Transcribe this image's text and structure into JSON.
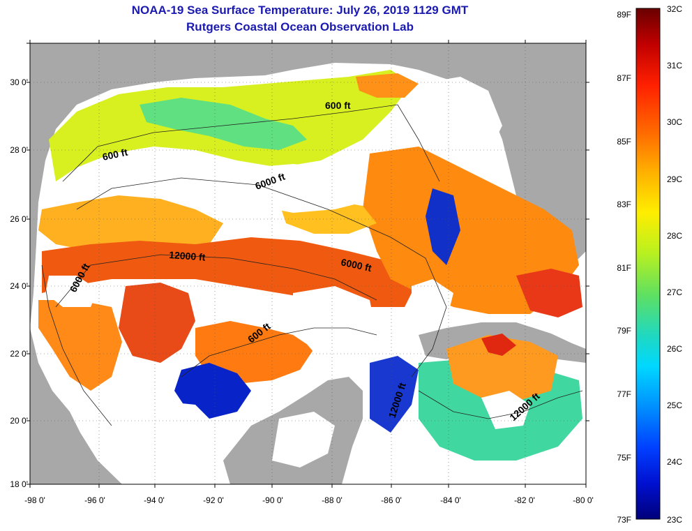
{
  "header": {
    "title": "NOAA-19 Sea Surface Temperature:  July 26, 2019 1129 GMT",
    "subtitle": "Rutgers Coastal Ocean Observation Lab"
  },
  "axes": {
    "lat_labels": [
      "30 0'",
      "28 0'",
      "26 0'",
      "24 0'",
      "22 0'",
      "20 0'",
      "18 0'"
    ],
    "lon_labels": [
      "-98 0'",
      "-96 0'",
      "-94 0'",
      "-92 0'",
      "-90 0'",
      "-88 0'",
      "-86 0'",
      "-84 0'",
      "-82 0'",
      "-80 0'"
    ]
  },
  "contours": {
    "labels": [
      "600 ft",
      "600 ft",
      "6000 ft",
      "12000 ft",
      "6000 ft",
      "6000 ft",
      "600 ft",
      "12000 ft",
      "12000 ft"
    ]
  },
  "colorbar": {
    "fahrenheit_labels": [
      "89F",
      "87F",
      "85F",
      "83F",
      "81F",
      "79F",
      "77F",
      "75F",
      "73F"
    ],
    "celsius_labels": [
      "32C",
      "31C",
      "30C",
      "29C",
      "28C",
      "27C",
      "26C",
      "25C",
      "24C",
      "23C"
    ],
    "colors": [
      "#7a0000",
      "#c40000",
      "#ff2a00",
      "#ff7a00",
      "#ffb000",
      "#ffe600",
      "#c8f000",
      "#70e040",
      "#30d8a0",
      "#00e0ff",
      "#00a8ff",
      "#0060ff",
      "#0010e0",
      "#000080"
    ]
  },
  "colors": {
    "land": "#a8a8a8",
    "cloud": "#ffffff",
    "ocean_warm": "#ff7a10",
    "ocean_hot": "#f04010",
    "ocean_mid": "#ffc820",
    "ocean_cool": "#30d8a0",
    "ocean_cold": "#0020c0"
  }
}
